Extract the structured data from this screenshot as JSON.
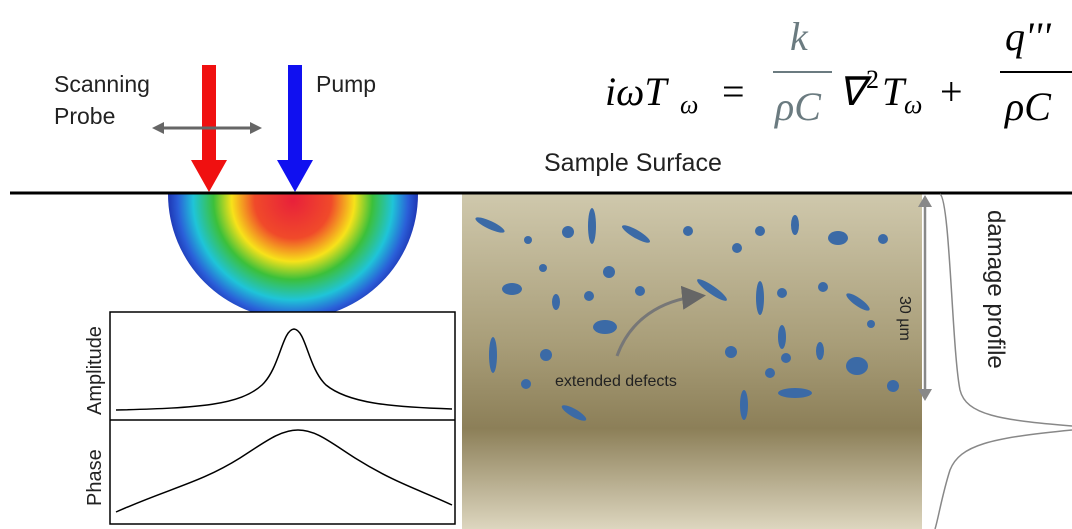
{
  "labels": {
    "probe_line1": "Scanning",
    "probe_line2": "Probe",
    "pump": "Pump",
    "surface": "Sample Surface",
    "amplitude": "Amplitude",
    "phase": "Phase",
    "defects": "extended defects",
    "depth": "30 µm",
    "profile": "damage profile"
  },
  "equation": {
    "lhs": "iωT",
    "lhs_sub": "ω",
    "eq": "=",
    "num1": "k",
    "den1": "ρC",
    "nabla": "∇",
    "sup": "2",
    "t": "T",
    "t_sub": "ω",
    "plus": "+",
    "num2": "q'''",
    "den2": "ρC"
  }
}
